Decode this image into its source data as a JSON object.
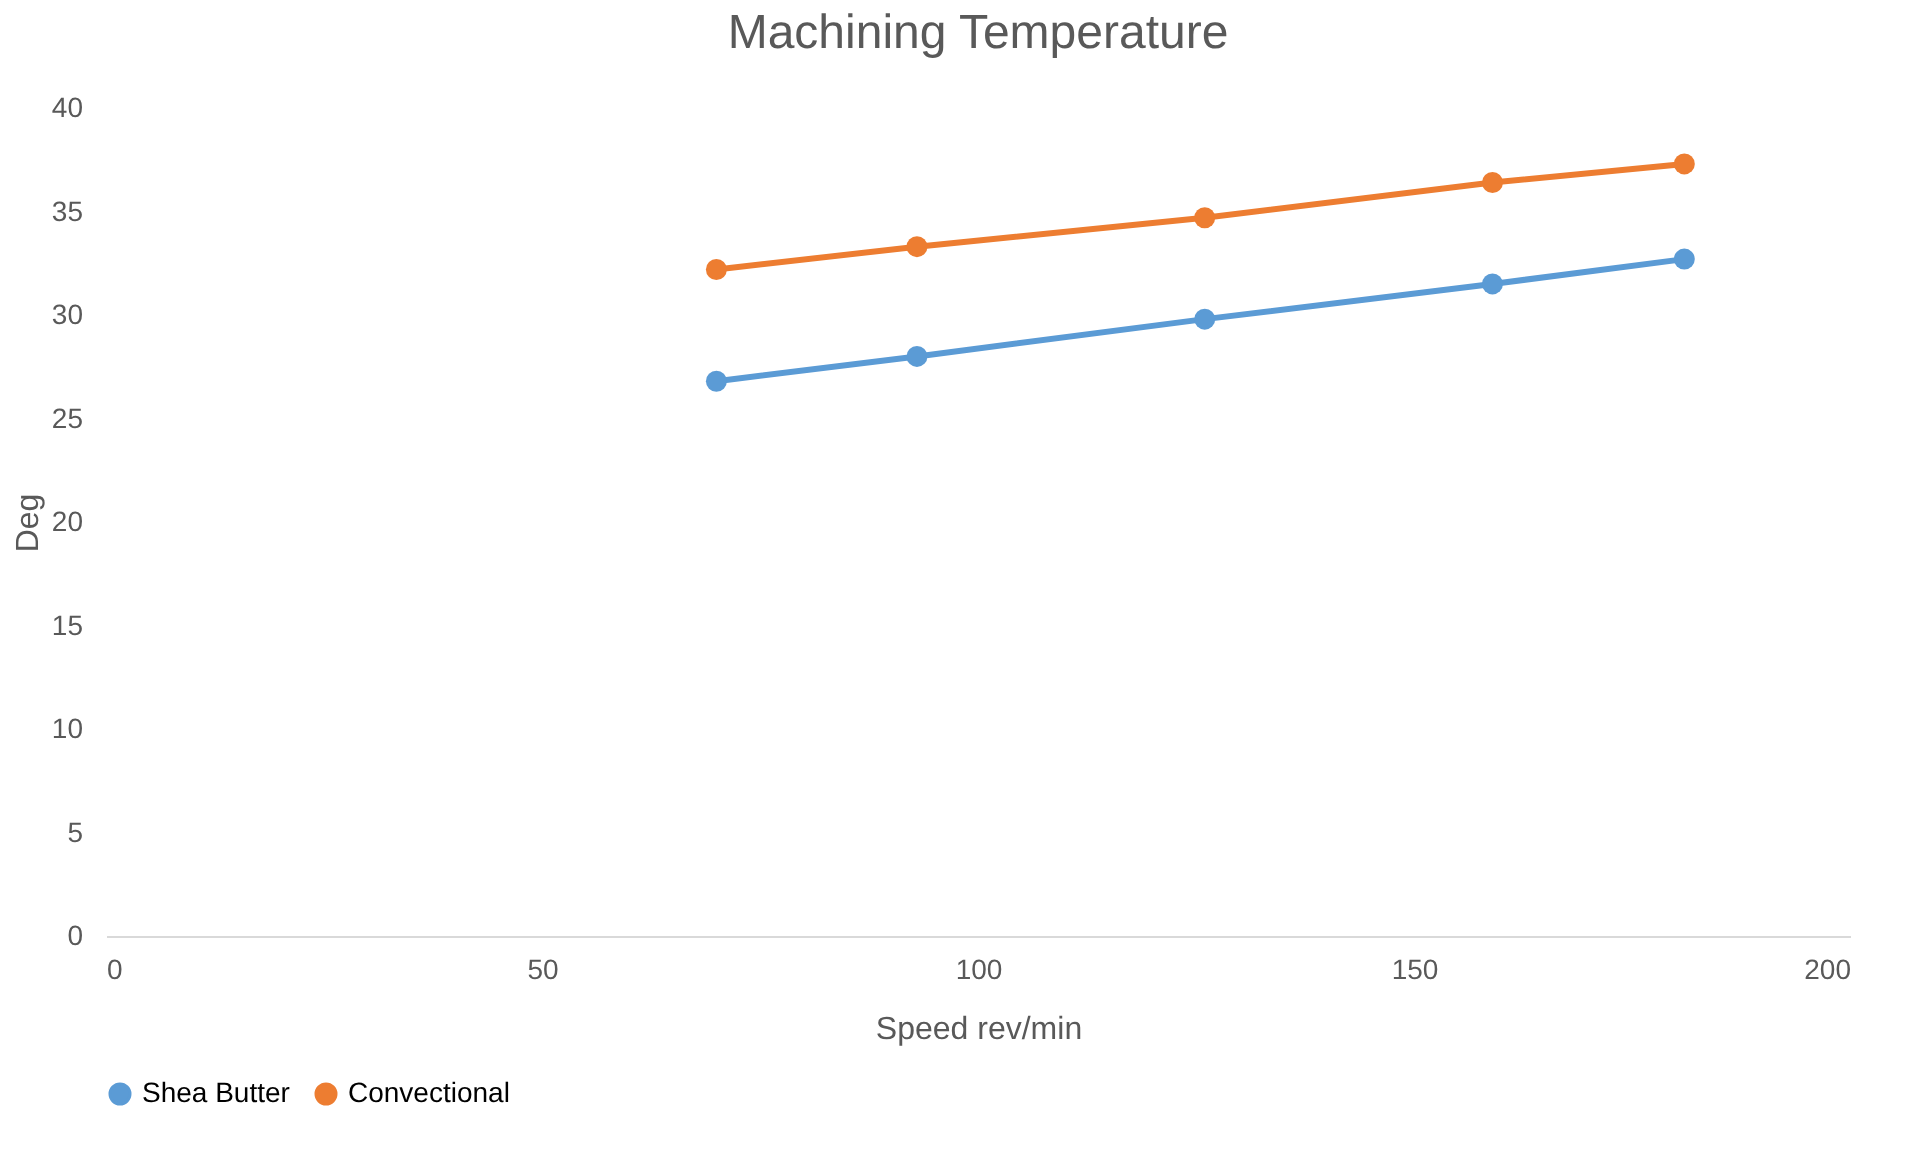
{
  "chart_data": {
    "type": "line",
    "title": "Machining Temperature",
    "xlabel": "Speed rev/min",
    "ylabel": "Deg",
    "x": [
      70,
      93,
      126,
      159,
      181
    ],
    "series": [
      {
        "name": "Shea Butter",
        "color": "#5b9bd5",
        "values": [
          26.8,
          28.0,
          29.8,
          31.5,
          32.7
        ]
      },
      {
        "name": "Convectional",
        "color": "#ed7d31",
        "values": [
          32.2,
          33.3,
          34.7,
          36.4,
          37.3
        ]
      }
    ],
    "xlim": [
      0,
      200
    ],
    "xticks": [
      0,
      50,
      100,
      150,
      200
    ],
    "ylim": [
      0,
      40
    ],
    "yticks": [
      0,
      5,
      10,
      15,
      20,
      25,
      30,
      35,
      40
    ],
    "grid": false,
    "legend": "bottom",
    "marker": "circle",
    "line_style": "solid"
  }
}
